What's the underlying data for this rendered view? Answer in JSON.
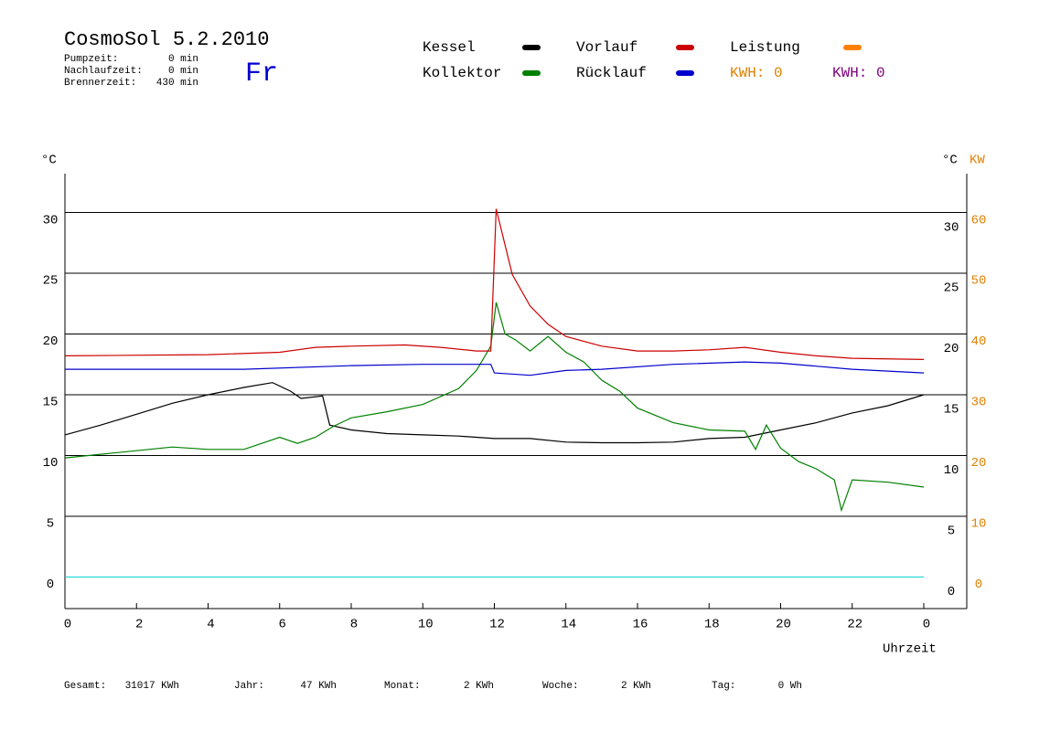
{
  "chart_data": {
    "type": "line",
    "title": "CosmoSol 5.2.2010",
    "day": "Fr",
    "info": [
      {
        "label": "Pumpzeit:",
        "value": "0 min"
      },
      {
        "label": "Nachlaufzeit:",
        "value": "0 min"
      },
      {
        "label": "Brennerzeit:",
        "value": "430 min"
      }
    ],
    "y_label": "°C",
    "y2_label": "KW",
    "x_label": "Uhrzeit",
    "extra_legend": {
      "name": "Leistung",
      "color": "#ff8000"
    },
    "kwh_labels": [
      {
        "text": "KWH: 0",
        "color": "#e08000"
      },
      {
        "text": "KWH: 0",
        "color": "#800080"
      }
    ],
    "footer": [
      {
        "label": "Gesamt:",
        "value": "31017 KWh"
      },
      {
        "label": "Jahr:",
        "value": "47 KWh"
      },
      {
        "label": "Monat:",
        "value": "2 KWh"
      },
      {
        "label": "Woche:",
        "value": "2 KWh"
      },
      {
        "label": "Tag:",
        "value": "0 Wh"
      }
    ],
    "xlim": [
      0,
      24
    ],
    "xticks": [
      0,
      2,
      4,
      6,
      8,
      10,
      12,
      14,
      16,
      18,
      20,
      22,
      {
        "value": 24,
        "label": "0"
      }
    ],
    "ylim": [
      -2.6,
      33.2
    ],
    "yticks": [
      0,
      5,
      10,
      15,
      20,
      25,
      30
    ],
    "y2lim": [
      -5.2,
      66.4
    ],
    "y2ticks": [
      0,
      10,
      20,
      30,
      40,
      50,
      60
    ],
    "grid": true,
    "series": [
      {
        "name": "Kessel",
        "color": "#000000",
        "x": [
          0,
          1,
          2,
          3,
          4,
          5,
          5.8,
          6.3,
          6.6,
          7.2,
          7.4,
          8,
          9,
          10,
          11,
          12,
          13,
          14,
          15,
          16,
          17,
          18,
          19,
          20,
          21,
          22,
          23,
          24
        ],
        "values": [
          11.7,
          12.5,
          13.4,
          14.3,
          15.0,
          15.6,
          16.0,
          15.3,
          14.7,
          14.9,
          12.5,
          12.1,
          11.8,
          11.7,
          11.6,
          11.4,
          11.4,
          11.1,
          11.05,
          11.05,
          11.1,
          11.4,
          11.5,
          12.1,
          12.7,
          13.5,
          14.1,
          15.0
        ]
      },
      {
        "name": "Kollektor",
        "color": "#008000",
        "x": [
          0,
          1,
          2,
          3,
          4,
          5,
          5.5,
          6,
          6.5,
          7,
          7.5,
          8,
          9,
          10,
          11,
          11.5,
          11.9,
          12.05,
          12.3,
          12.6,
          13,
          13.5,
          14,
          14.5,
          15,
          15.5,
          16,
          17,
          18,
          19,
          19.3,
          19.6,
          20,
          20.5,
          21,
          21.5,
          21.7,
          22,
          23,
          24
        ],
        "values": [
          9.8,
          10.1,
          10.4,
          10.7,
          10.5,
          10.5,
          11.0,
          11.5,
          11.0,
          11.5,
          12.4,
          13.1,
          13.6,
          14.2,
          15.5,
          17.0,
          19.0,
          22.6,
          20.0,
          19.5,
          18.6,
          19.8,
          18.5,
          17.7,
          16.2,
          15.3,
          13.9,
          12.7,
          12.1,
          12.0,
          10.5,
          12.5,
          10.6,
          9.5,
          8.9,
          8.0,
          5.5,
          8.0,
          7.8,
          7.4
        ]
      },
      {
        "name": "Vorlauf",
        "color": "#cc0000",
        "x": [
          0,
          4,
          6,
          7,
          8,
          9.5,
          10.5,
          11.5,
          11.9,
          12.05,
          12.5,
          13,
          13.5,
          14,
          15,
          16,
          17,
          18,
          19,
          20,
          21,
          22,
          24
        ],
        "values": [
          18.2,
          18.3,
          18.5,
          18.9,
          19.0,
          19.1,
          18.9,
          18.6,
          18.6,
          30.3,
          24.9,
          22.3,
          20.8,
          19.8,
          19.0,
          18.6,
          18.6,
          18.7,
          18.9,
          18.5,
          18.2,
          18.0,
          17.9
        ]
      },
      {
        "name": "Rücklauf",
        "color": "#0000cc",
        "x": [
          0,
          5,
          8,
          10,
          11.9,
          12,
          13,
          14,
          15,
          17,
          19,
          20,
          22,
          24
        ],
        "values": [
          17.1,
          17.1,
          17.4,
          17.5,
          17.5,
          16.8,
          16.6,
          17.0,
          17.1,
          17.5,
          17.7,
          17.6,
          17.1,
          16.8
        ]
      }
    ]
  }
}
